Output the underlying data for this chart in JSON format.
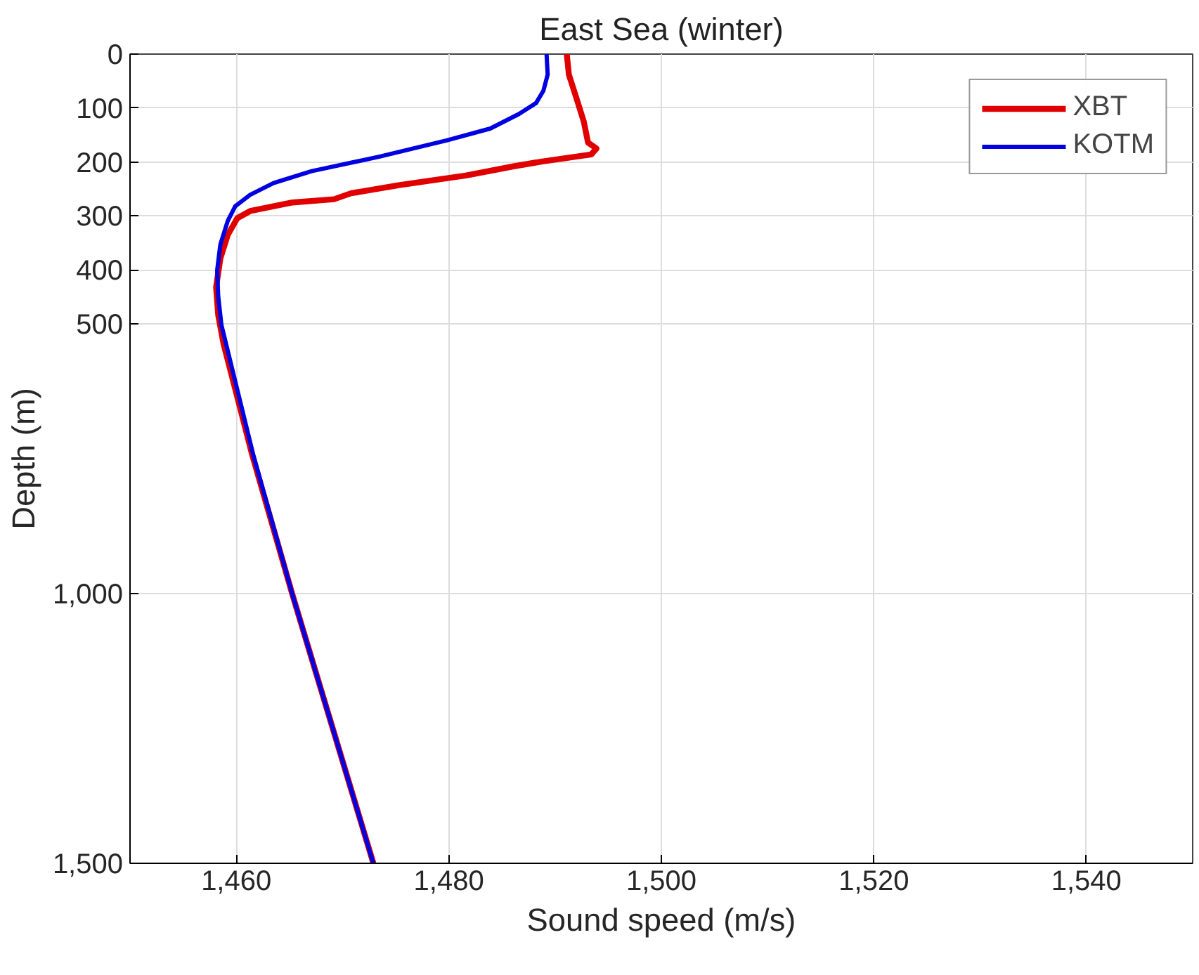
{
  "chart_data": {
    "type": "line",
    "title": "East Sea (winter)",
    "xlabel": "Sound speed (m/s)",
    "ylabel": "Depth (m)",
    "series": [
      {
        "name": "XBT",
        "color": "#e00000",
        "x": [
          1491.1,
          1491.3,
          1492.0,
          1492.7,
          1493.1,
          1493.9,
          1493.4,
          1488.8,
          1486.1,
          1481.6,
          1475.3,
          1470.8,
          1469.2,
          1465.3,
          1461.3,
          1460.1,
          1459.2,
          1458.5,
          1458.1,
          1458.3,
          1458.8,
          1461.5,
          1465.3,
          1472.9
        ],
        "values": [
          0,
          38,
          81,
          125,
          164,
          175,
          186,
          199,
          208,
          225,
          243,
          258,
          269,
          275,
          291,
          304,
          335,
          379,
          432,
          484,
          537,
          743,
          1003,
          1500
        ]
      },
      {
        "name": "KOTM",
        "color": "#0000e0",
        "x": [
          1489.2,
          1489.3,
          1488.9,
          1488.2,
          1486.6,
          1483.9,
          1479.8,
          1473.5,
          1467.1,
          1463.5,
          1461.3,
          1459.9,
          1459.2,
          1458.5,
          1458.2,
          1458.3,
          1458.6,
          1461.6,
          1465.3,
          1472.9
        ],
        "values": [
          0,
          38,
          68,
          91,
          111,
          138,
          160,
          190,
          217,
          239,
          261,
          282,
          309,
          353,
          401,
          449,
          502,
          743,
          1003,
          1500
        ]
      }
    ],
    "xlim": [
      1450,
      1550
    ],
    "ylim": [
      1500,
      0
    ],
    "xticks": [
      {
        "value": 1460,
        "label": "1,460"
      },
      {
        "value": 1480,
        "label": "1,480"
      },
      {
        "value": 1500,
        "label": "1,500"
      },
      {
        "value": 1520,
        "label": "1,520"
      },
      {
        "value": 1540,
        "label": "1,540"
      }
    ],
    "yticks": [
      0,
      100,
      200,
      300,
      400,
      500,
      {
        "value": 1000,
        "label": "1,000"
      },
      {
        "value": 1500,
        "label": "1,500"
      }
    ],
    "grid": true,
    "legend": "top right",
    "line_style": "solid",
    "marker": "none"
  }
}
